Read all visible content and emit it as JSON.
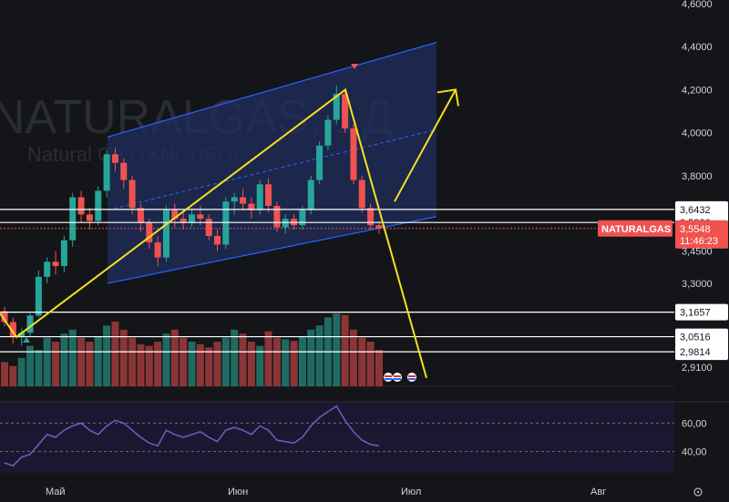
{
  "chart_data": {
    "type": "candlestick",
    "symbol": "NATURALGAS",
    "watermark": {
      "symbol": "NATURALGAS, 1Д",
      "description": "Natural Gas (XNGUSD)"
    },
    "price_axis": {
      "ticks": [
        "4,6000",
        "4,4000",
        "4,2000",
        "4,0000",
        "3,8000",
        "3,4500",
        "3,3000",
        "2,9100"
      ],
      "ylim": [
        2.88,
        4.62
      ]
    },
    "time_axis": {
      "labels": [
        "Май",
        "Июн",
        "Июл",
        "Авг"
      ]
    },
    "horizontal_levels": [
      "3,6432",
      "3,5826",
      "3,1657",
      "3,0516",
      "2,9814"
    ],
    "last_price": {
      "symbol": "NATURALGAS",
      "price": "3,5548",
      "countdown": "11:46:23"
    },
    "candles": [
      {
        "o": 3.17,
        "h": 3.19,
        "l": 3.1,
        "c": 3.12
      },
      {
        "o": 3.12,
        "h": 3.14,
        "l": 3.02,
        "c": 3.05
      },
      {
        "o": 3.05,
        "h": 3.09,
        "l": 3.01,
        "c": 3.07
      },
      {
        "o": 3.07,
        "h": 3.16,
        "l": 3.05,
        "c": 3.15
      },
      {
        "o": 3.15,
        "h": 3.36,
        "l": 3.14,
        "c": 3.33
      },
      {
        "o": 3.33,
        "h": 3.42,
        "l": 3.3,
        "c": 3.4
      },
      {
        "o": 3.4,
        "h": 3.45,
        "l": 3.34,
        "c": 3.38
      },
      {
        "o": 3.38,
        "h": 3.52,
        "l": 3.35,
        "c": 3.5
      },
      {
        "o": 3.5,
        "h": 3.72,
        "l": 3.47,
        "c": 3.7
      },
      {
        "o": 3.7,
        "h": 3.73,
        "l": 3.58,
        "c": 3.62
      },
      {
        "o": 3.62,
        "h": 3.65,
        "l": 3.55,
        "c": 3.59
      },
      {
        "o": 3.59,
        "h": 3.75,
        "l": 3.57,
        "c": 3.73
      },
      {
        "o": 3.73,
        "h": 3.92,
        "l": 3.7,
        "c": 3.9
      },
      {
        "o": 3.9,
        "h": 3.93,
        "l": 3.82,
        "c": 3.86
      },
      {
        "o": 3.86,
        "h": 3.88,
        "l": 3.74,
        "c": 3.78
      },
      {
        "o": 3.78,
        "h": 3.8,
        "l": 3.62,
        "c": 3.65
      },
      {
        "o": 3.65,
        "h": 3.67,
        "l": 3.54,
        "c": 3.58
      },
      {
        "o": 3.58,
        "h": 3.6,
        "l": 3.46,
        "c": 3.49
      },
      {
        "o": 3.49,
        "h": 3.52,
        "l": 3.38,
        "c": 3.42
      },
      {
        "o": 3.42,
        "h": 3.66,
        "l": 3.4,
        "c": 3.64
      },
      {
        "o": 3.64,
        "h": 3.67,
        "l": 3.56,
        "c": 3.6
      },
      {
        "o": 3.6,
        "h": 3.63,
        "l": 3.55,
        "c": 3.58
      },
      {
        "o": 3.58,
        "h": 3.64,
        "l": 3.56,
        "c": 3.62
      },
      {
        "o": 3.62,
        "h": 3.66,
        "l": 3.57,
        "c": 3.6
      },
      {
        "o": 3.6,
        "h": 3.62,
        "l": 3.5,
        "c": 3.52
      },
      {
        "o": 3.52,
        "h": 3.55,
        "l": 3.45,
        "c": 3.48
      },
      {
        "o": 3.48,
        "h": 3.7,
        "l": 3.46,
        "c": 3.68
      },
      {
        "o": 3.68,
        "h": 3.72,
        "l": 3.62,
        "c": 3.7
      },
      {
        "o": 3.7,
        "h": 3.74,
        "l": 3.64,
        "c": 3.67
      },
      {
        "o": 3.67,
        "h": 3.7,
        "l": 3.6,
        "c": 3.64
      },
      {
        "o": 3.64,
        "h": 3.78,
        "l": 3.62,
        "c": 3.76
      },
      {
        "o": 3.76,
        "h": 3.79,
        "l": 3.63,
        "c": 3.66
      },
      {
        "o": 3.66,
        "h": 3.68,
        "l": 3.54,
        "c": 3.56
      },
      {
        "o": 3.56,
        "h": 3.62,
        "l": 3.53,
        "c": 3.6
      },
      {
        "o": 3.6,
        "h": 3.62,
        "l": 3.55,
        "c": 3.57
      },
      {
        "o": 3.57,
        "h": 3.66,
        "l": 3.55,
        "c": 3.64
      },
      {
        "o": 3.64,
        "h": 3.8,
        "l": 3.62,
        "c": 3.78
      },
      {
        "o": 3.78,
        "h": 3.96,
        "l": 3.76,
        "c": 3.94
      },
      {
        "o": 3.94,
        "h": 4.08,
        "l": 3.92,
        "c": 4.06
      },
      {
        "o": 4.06,
        "h": 4.22,
        "l": 4.04,
        "c": 4.18
      },
      {
        "o": 4.18,
        "h": 4.2,
        "l": 4.0,
        "c": 4.02
      },
      {
        "o": 4.02,
        "h": 4.04,
        "l": 3.76,
        "c": 3.78
      },
      {
        "o": 3.78,
        "h": 3.8,
        "l": 3.63,
        "c": 3.65
      },
      {
        "o": 3.65,
        "h": 3.67,
        "l": 3.55,
        "c": 3.57
      },
      {
        "o": 3.57,
        "h": 3.59,
        "l": 3.53,
        "c": 3.555
      }
    ],
    "volume": [
      30,
      25,
      35,
      50,
      45,
      60,
      55,
      65,
      70,
      60,
      55,
      62,
      75,
      80,
      70,
      60,
      52,
      50,
      55,
      65,
      70,
      60,
      55,
      52,
      48,
      55,
      60,
      70,
      65,
      55,
      50,
      68,
      60,
      58,
      56,
      62,
      70,
      75,
      85,
      90,
      88,
      70,
      60,
      55,
      45
    ],
    "rsi": {
      "ticks": [
        "60,00",
        "40,00"
      ],
      "ylim": [
        25,
        75
      ],
      "values": [
        32,
        30,
        36,
        38,
        45,
        52,
        50,
        55,
        58,
        60,
        55,
        52,
        58,
        62,
        60,
        55,
        50,
        46,
        44,
        55,
        52,
        50,
        52,
        54,
        50,
        47,
        55,
        57,
        55,
        52,
        58,
        55,
        48,
        47,
        46,
        50,
        58,
        64,
        68,
        72,
        62,
        54,
        48,
        45,
        44
      ]
    },
    "drawings": {
      "channel_lower_start": 3.3,
      "channel_lower_end": 3.61,
      "channel_upper_start": 3.98,
      "channel_upper_end": 4.42,
      "zigzag": [
        3.05,
        4.2,
        2.86
      ],
      "projection_arrow": [
        3.68,
        4.2
      ]
    },
    "colors": {
      "up": "#26a69a",
      "down": "#ef5350",
      "background": "#141518",
      "channel_line": "#2962ff",
      "channel_fill": "#1f2d5c",
      "drawing": "#f5e11e",
      "rsi_line": "#7e57c2",
      "level_line": "#ffffff"
    }
  }
}
